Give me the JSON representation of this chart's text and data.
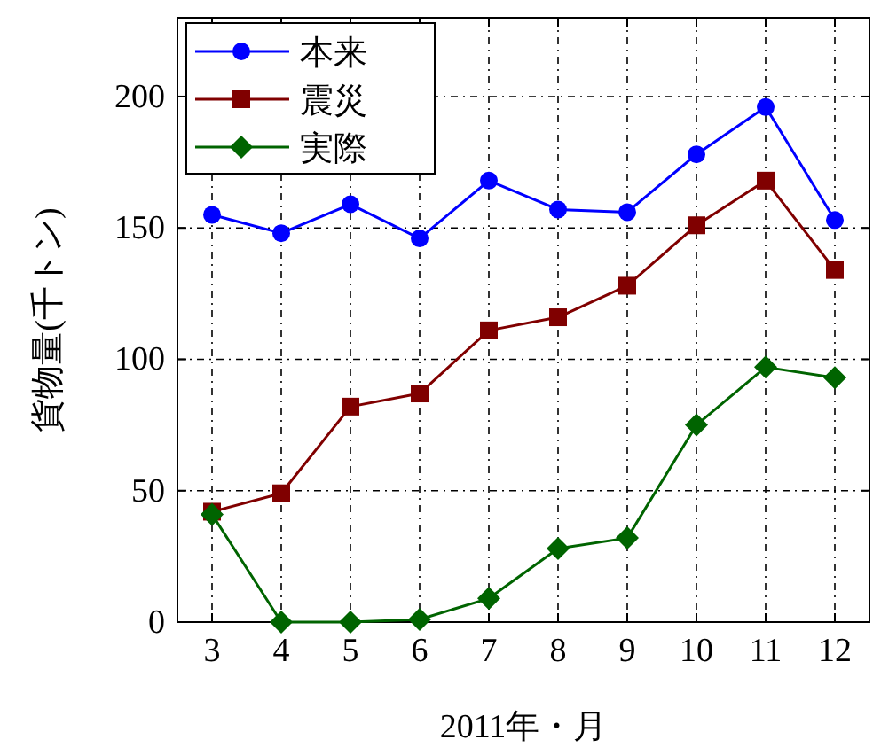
{
  "chart_data": {
    "type": "line",
    "xlabel": "2011年・月",
    "ylabel": "貨物量(千トン)",
    "x": [
      3,
      4,
      5,
      6,
      7,
      8,
      9,
      10,
      11,
      12
    ],
    "series": [
      {
        "name": "本来",
        "color": "#0000ff",
        "marker": "circle",
        "values": [
          155,
          148,
          159,
          146,
          168,
          157,
          156,
          178,
          196,
          153
        ]
      },
      {
        "name": "震災",
        "color": "#800000",
        "marker": "square",
        "values": [
          42,
          49,
          82,
          87,
          111,
          116,
          128,
          151,
          168,
          134
        ]
      },
      {
        "name": "実際",
        "color": "#006400",
        "marker": "diamond",
        "values": [
          41,
          0,
          0,
          1,
          9,
          28,
          32,
          75,
          97,
          93
        ]
      }
    ],
    "xlim": [
      2.5,
      12.5
    ],
    "xticks": [
      3,
      4,
      5,
      6,
      7,
      8,
      9,
      10,
      11,
      12
    ],
    "ylim": [
      0,
      230
    ],
    "yticks": [
      0,
      50,
      100,
      150,
      200
    ],
    "grid": true,
    "legend": "top left",
    "line_style": "solid"
  }
}
